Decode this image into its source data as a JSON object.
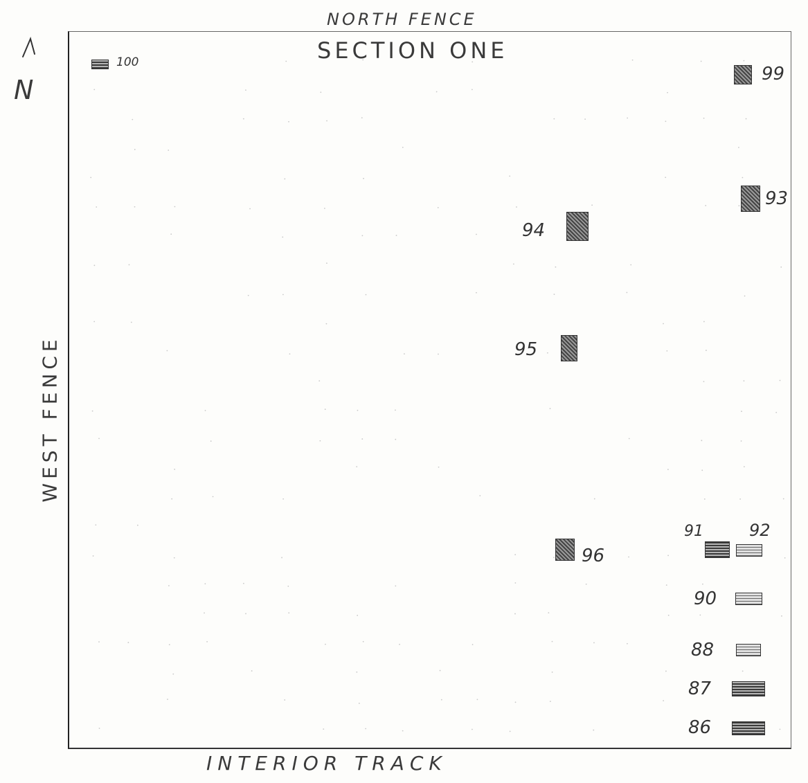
{
  "labels": {
    "north_fence": "NORTH FENCE",
    "section": "SECTION ONE",
    "interior_track": "INTERIOR TRACK",
    "west_fence": "WEST FENCE",
    "north": "N"
  },
  "plots": [
    {
      "id": "100",
      "label": "100"
    },
    {
      "id": "99",
      "label": "99"
    },
    {
      "id": "93",
      "label": "93"
    },
    {
      "id": "94",
      "label": "94"
    },
    {
      "id": "95",
      "label": "95"
    },
    {
      "id": "96",
      "label": "96"
    },
    {
      "id": "91",
      "label": "91"
    },
    {
      "id": "92",
      "label": "92"
    },
    {
      "id": "90",
      "label": "90"
    },
    {
      "id": "88",
      "label": "88"
    },
    {
      "id": "87",
      "label": "87"
    },
    {
      "id": "86",
      "label": "86"
    }
  ]
}
